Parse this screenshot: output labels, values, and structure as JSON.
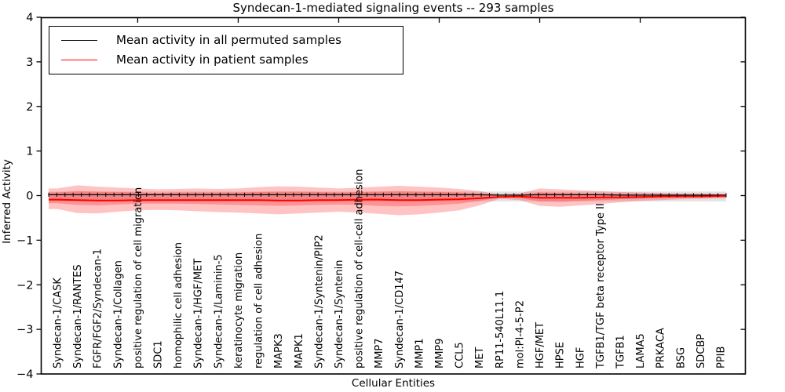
{
  "title": "Syndecan-1-mediated signaling events -- 293 samples",
  "legend": {
    "position": "upper left",
    "items": [
      {
        "label": "Mean activity in all permuted samples",
        "color": "#000000"
      },
      {
        "label": "Mean activity in patient samples",
        "color": "#ff0000"
      }
    ]
  },
  "chart_data": {
    "type": "line",
    "title": "Syndecan-1-mediated signaling events -- 293 samples",
    "xlabel": "Cellular Entities",
    "ylabel": "Inferred Activity",
    "ylim": [
      -4,
      4
    ],
    "yticks": [
      -4,
      -3,
      -2,
      -1,
      0,
      1,
      2,
      3,
      4
    ],
    "grid": false,
    "categories": [
      "Syndecan-1/CASK",
      "Syndecan-1/RANTES",
      "FGFR/FGF2/Syndecan-1",
      "Syndecan-1/Collagen",
      "positive regulation of cell migration",
      "SDC1",
      "homophilic cell adhesion",
      "Syndecan-1/HGF/MET",
      "Syndecan-1/Laminin-5",
      "keratinocyte migration",
      "regulation of cell adhesion",
      "MAPK3",
      "MAPK1",
      "Syndecan-1/Syntenin/PIP2",
      "Syndecan-1/Syntenin",
      "positive regulation of cell-cell adhesion",
      "MMP7",
      "Syndecan-1/CD147",
      "MMP1",
      "MMP9",
      "CCL5",
      "MET",
      "RP11-540L11.1",
      "mol:PI-4-5-P2",
      "HGF/MET",
      "HPSE",
      "HGF",
      "TGFB1/TGF beta receptor Type II",
      "TGFB1",
      "LAMA5",
      "PRKACA",
      "BSG",
      "SDCBP",
      "PPIB"
    ],
    "series": [
      {
        "name": "Mean activity in all permuted samples",
        "color": "#000000",
        "marker": "|",
        "line_width": 1.3,
        "values": [
          0.02,
          0.02,
          0.02,
          0.02,
          0.02,
          0.02,
          0.02,
          0.02,
          0.02,
          0.02,
          0.02,
          0.02,
          0.02,
          0.02,
          0.02,
          0.02,
          0.02,
          0.02,
          0.02,
          0.02,
          0.02,
          0.02,
          0.01,
          0.01,
          0.02,
          0.02,
          0.02,
          0.02,
          0.01,
          0.01,
          0.01,
          0.01,
          0.01,
          0.01
        ]
      },
      {
        "name": "Mean activity in patient samples",
        "color": "#ff0000",
        "marker": "none",
        "line_width": 2,
        "values": [
          -0.09,
          -0.1,
          -0.11,
          -0.11,
          -0.1,
          -0.1,
          -0.1,
          -0.1,
          -0.1,
          -0.1,
          -0.1,
          -0.11,
          -0.11,
          -0.1,
          -0.1,
          -0.09,
          -0.09,
          -0.1,
          -0.1,
          -0.09,
          -0.08,
          -0.06,
          -0.03,
          -0.02,
          -0.05,
          -0.05,
          -0.05,
          -0.04,
          -0.04,
          -0.03,
          -0.02,
          -0.02,
          -0.02,
          -0.01
        ]
      }
    ],
    "bands": [
      {
        "name": "permuted-samples-std-band",
        "color": "#e3e3e3",
        "top": 0.09,
        "bottom": -0.13
      },
      {
        "name": "patient-samples-std-band-outer",
        "color": "rgba(255,38,38,0.28)",
        "top": [
          0.16,
          0.23,
          0.2,
          0.18,
          0.16,
          0.14,
          0.15,
          0.16,
          0.15,
          0.16,
          0.19,
          0.21,
          0.2,
          0.18,
          0.16,
          0.18,
          0.2,
          0.22,
          0.2,
          0.18,
          0.15,
          0.1,
          0.03,
          0.05,
          0.16,
          0.14,
          0.12,
          0.1,
          0.08,
          0.07,
          0.06,
          0.05,
          0.05,
          0.04
        ],
        "bottom": [
          -0.3,
          -0.39,
          -0.4,
          -0.36,
          -0.33,
          -0.32,
          -0.33,
          -0.35,
          -0.37,
          -0.38,
          -0.4,
          -0.42,
          -0.4,
          -0.38,
          -0.36,
          -0.38,
          -0.41,
          -0.44,
          -0.42,
          -0.38,
          -0.33,
          -0.22,
          -0.07,
          -0.1,
          -0.23,
          -0.25,
          -0.22,
          -0.19,
          -0.15,
          -0.12,
          -0.1,
          -0.08,
          -0.07,
          -0.06
        ]
      },
      {
        "name": "patient-samples-std-band-inner",
        "color": "rgba(255,38,38,0.30)",
        "top": [
          0.07,
          0.1,
          0.09,
          0.08,
          0.07,
          0.06,
          0.07,
          0.07,
          0.07,
          0.07,
          0.08,
          0.09,
          0.09,
          0.08,
          0.07,
          0.08,
          0.09,
          0.1,
          0.09,
          0.08,
          0.07,
          0.04,
          0.02,
          0.02,
          0.07,
          0.06,
          0.05,
          0.04,
          0.04,
          0.03,
          0.03,
          0.02,
          0.02,
          0.02
        ],
        "bottom": [
          -0.17,
          -0.21,
          -0.22,
          -0.2,
          -0.18,
          -0.18,
          -0.18,
          -0.19,
          -0.2,
          -0.21,
          -0.22,
          -0.23,
          -0.22,
          -0.21,
          -0.2,
          -0.21,
          -0.23,
          -0.24,
          -0.23,
          -0.21,
          -0.18,
          -0.12,
          -0.04,
          -0.06,
          -0.13,
          -0.14,
          -0.12,
          -0.1,
          -0.08,
          -0.07,
          -0.06,
          -0.04,
          -0.04,
          -0.03
        ]
      }
    ]
  }
}
